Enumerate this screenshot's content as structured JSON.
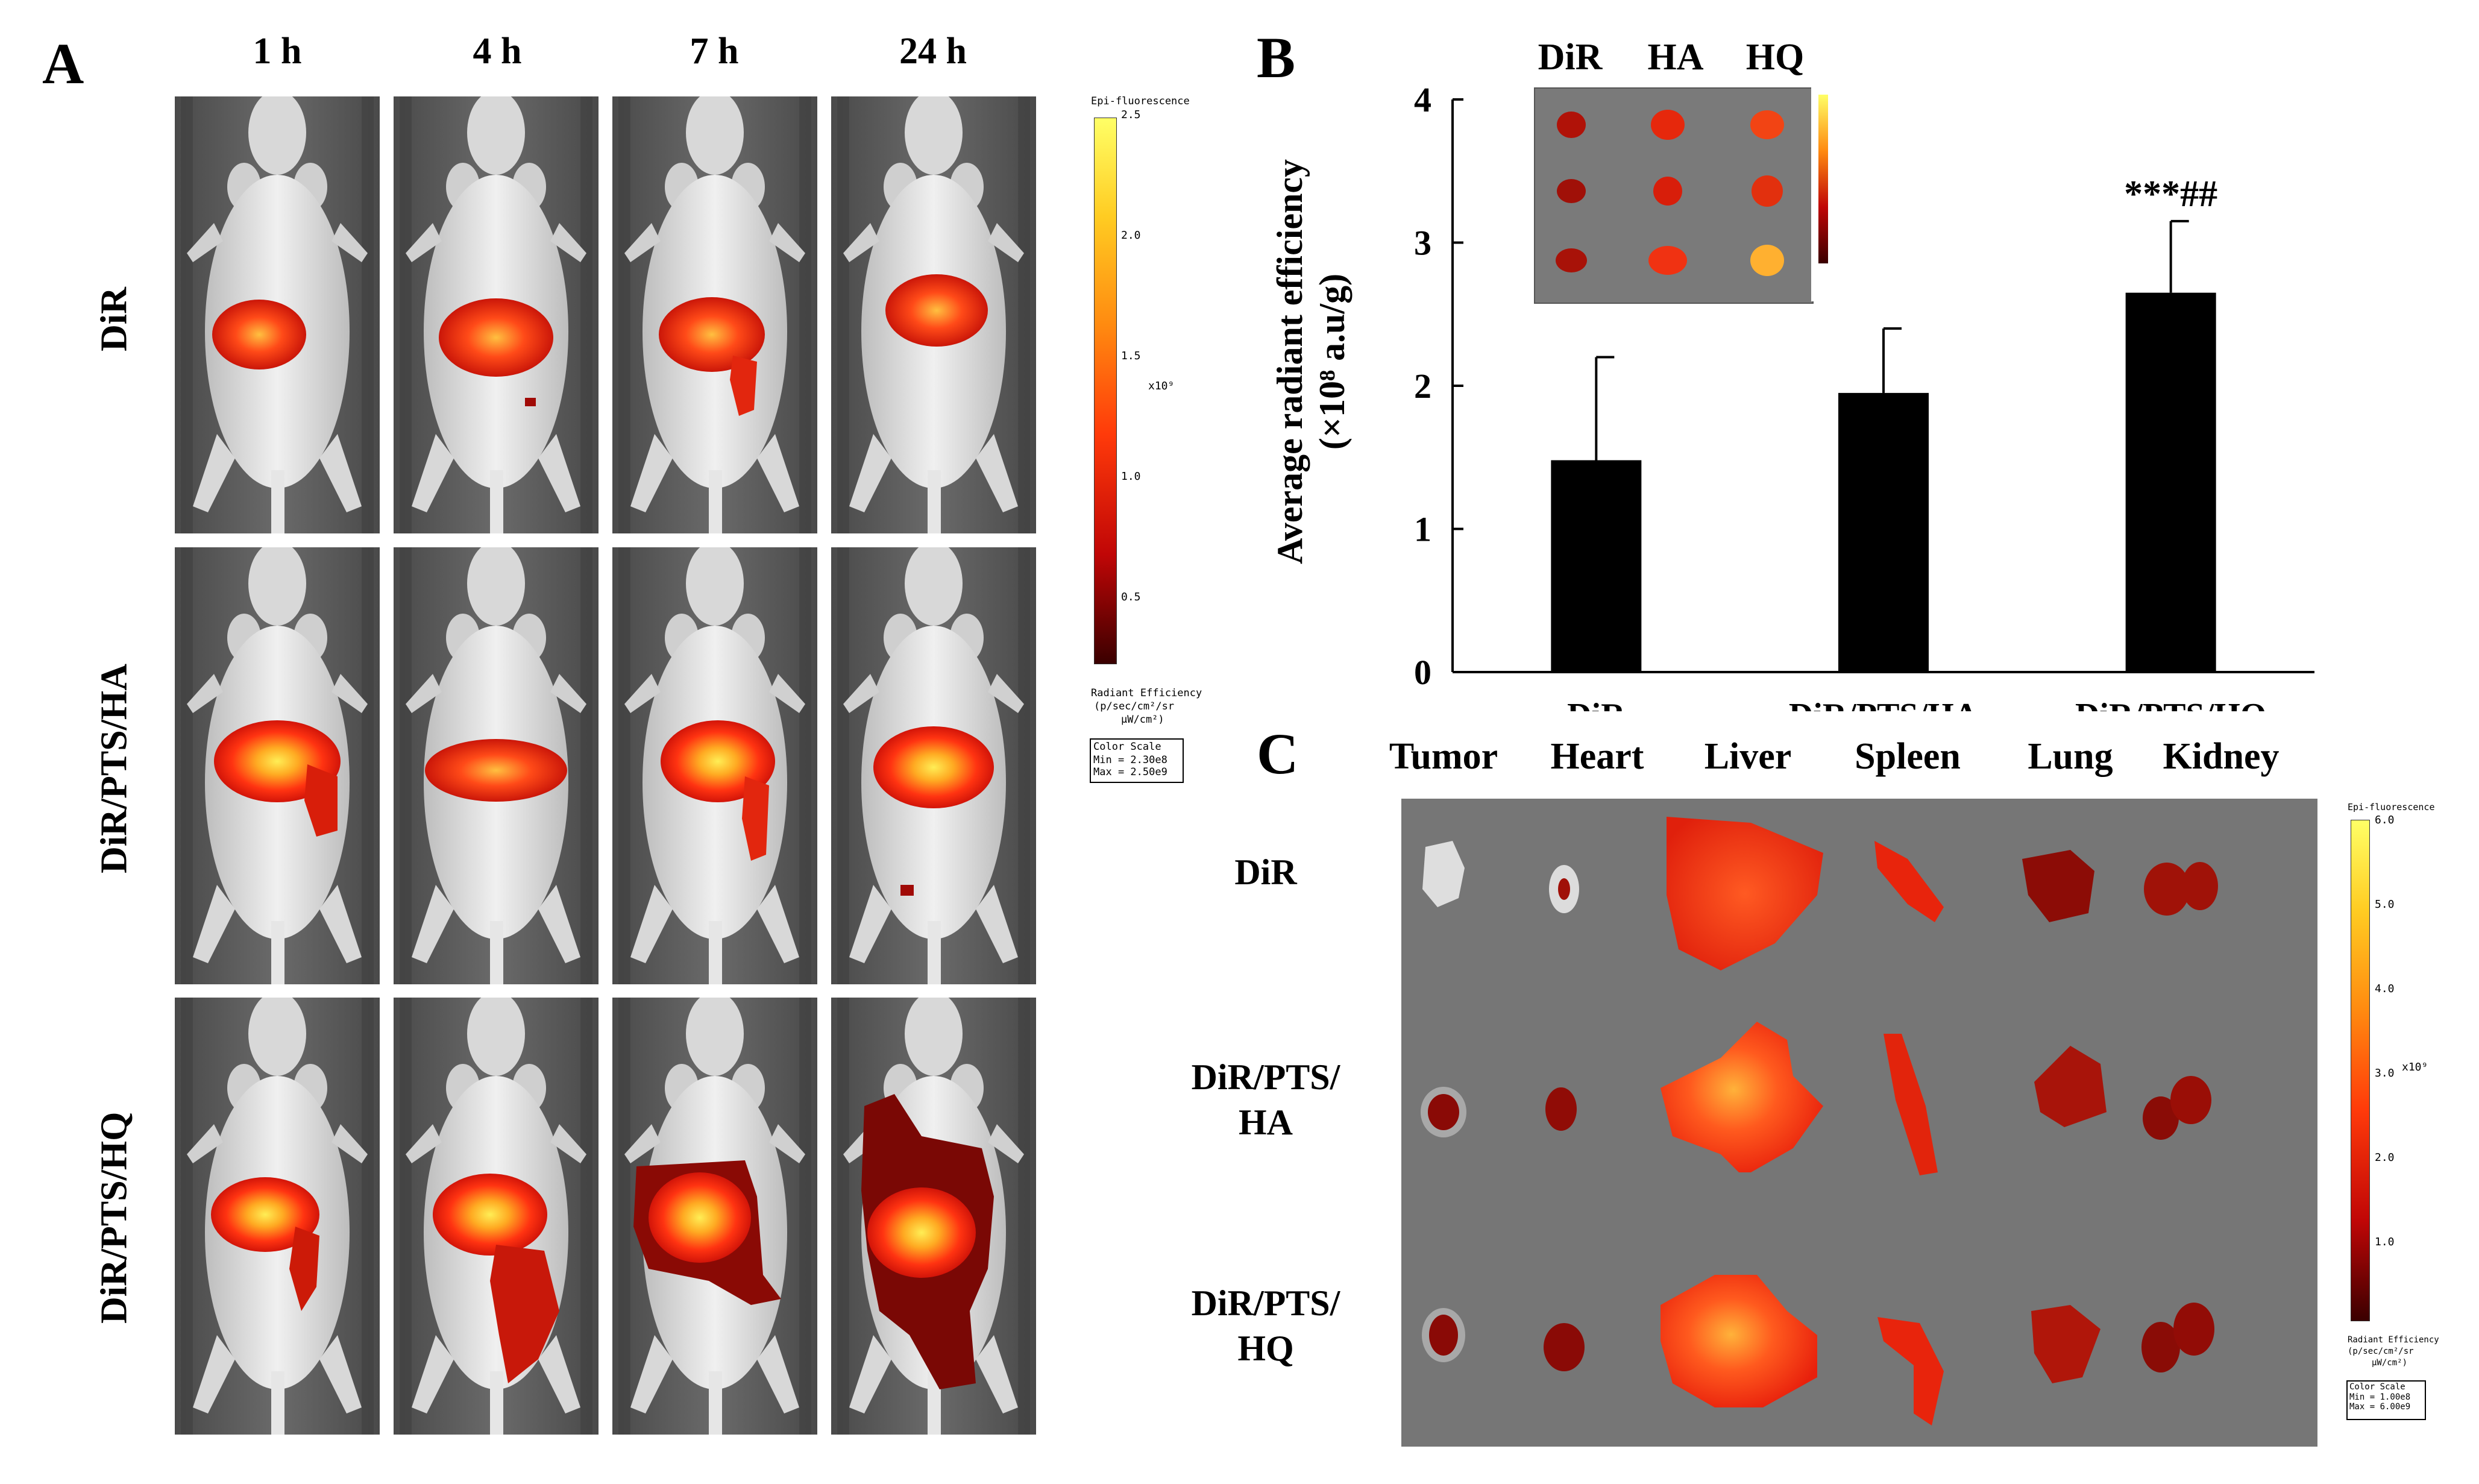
{
  "panelA": {
    "letter": "A",
    "time_headers": [
      "1 h",
      "4 h",
      "7 h",
      "24 h"
    ],
    "row_labels": [
      "DiR",
      "DiR/PTS/HA",
      "DiR/PTS/HQ"
    ],
    "scale": {
      "title": "Epi-fluorescence",
      "ticks": [
        "2.5",
        "2.0",
        "1.5",
        "1.0",
        "0.5"
      ],
      "multiplier": "x10⁹",
      "unit_line1": "Radiant Efficiency",
      "unit_line2": "(p/sec/cm²/sr",
      "unit_line3": "μW/cm²)",
      "box_title": "Color Scale",
      "min": "Min = 2.30e8",
      "max": "Max = 2.50e9"
    }
  },
  "panelB": {
    "letter": "B",
    "inset_labels": [
      "DiR",
      "HA",
      "HQ"
    ],
    "significance": "***##"
  },
  "panelC": {
    "letter": "C",
    "organs": [
      "Tumor",
      "Heart",
      "Liver",
      "Spleen",
      "Lung",
      "Kidney"
    ],
    "row_labels": [
      [
        "DiR",
        ""
      ],
      [
        "DiR/PTS/",
        "HA"
      ],
      [
        "DiR/PTS/",
        "HQ"
      ]
    ],
    "scale": {
      "title": "Epi-fluorescence",
      "ticks": [
        "6.0",
        "5.0",
        "4.0",
        "3.0",
        "2.0",
        "1.0"
      ],
      "multiplier": "x10⁹",
      "unit_line1": "Radiant Efficiency",
      "unit_line2": "(p/sec/cm²/sr",
      "unit_line3": "μW/cm²)",
      "box_title": "Color Scale",
      "min": "Min = 1.00e8",
      "max": "Max = 6.00e9"
    }
  },
  "chart_data": {
    "type": "bar",
    "categories": [
      "DiR",
      "DiR/PTS/HA",
      "DiR/PTS/HQ"
    ],
    "values": [
      1.48,
      1.95,
      2.65
    ],
    "errors": [
      0.72,
      0.45,
      0.5
    ],
    "ylabel": "Average radiant efficiency (×10⁸ a.u/g)",
    "ylabel_line1": "Average radiant efficiency",
    "ylabel_line2": "(×10⁸ a.u/g)",
    "ylim": [
      0,
      4
    ],
    "yticks": [
      "0",
      "1",
      "2",
      "3",
      "4"
    ],
    "bar_color": "#000000",
    "annotation": "***##"
  }
}
